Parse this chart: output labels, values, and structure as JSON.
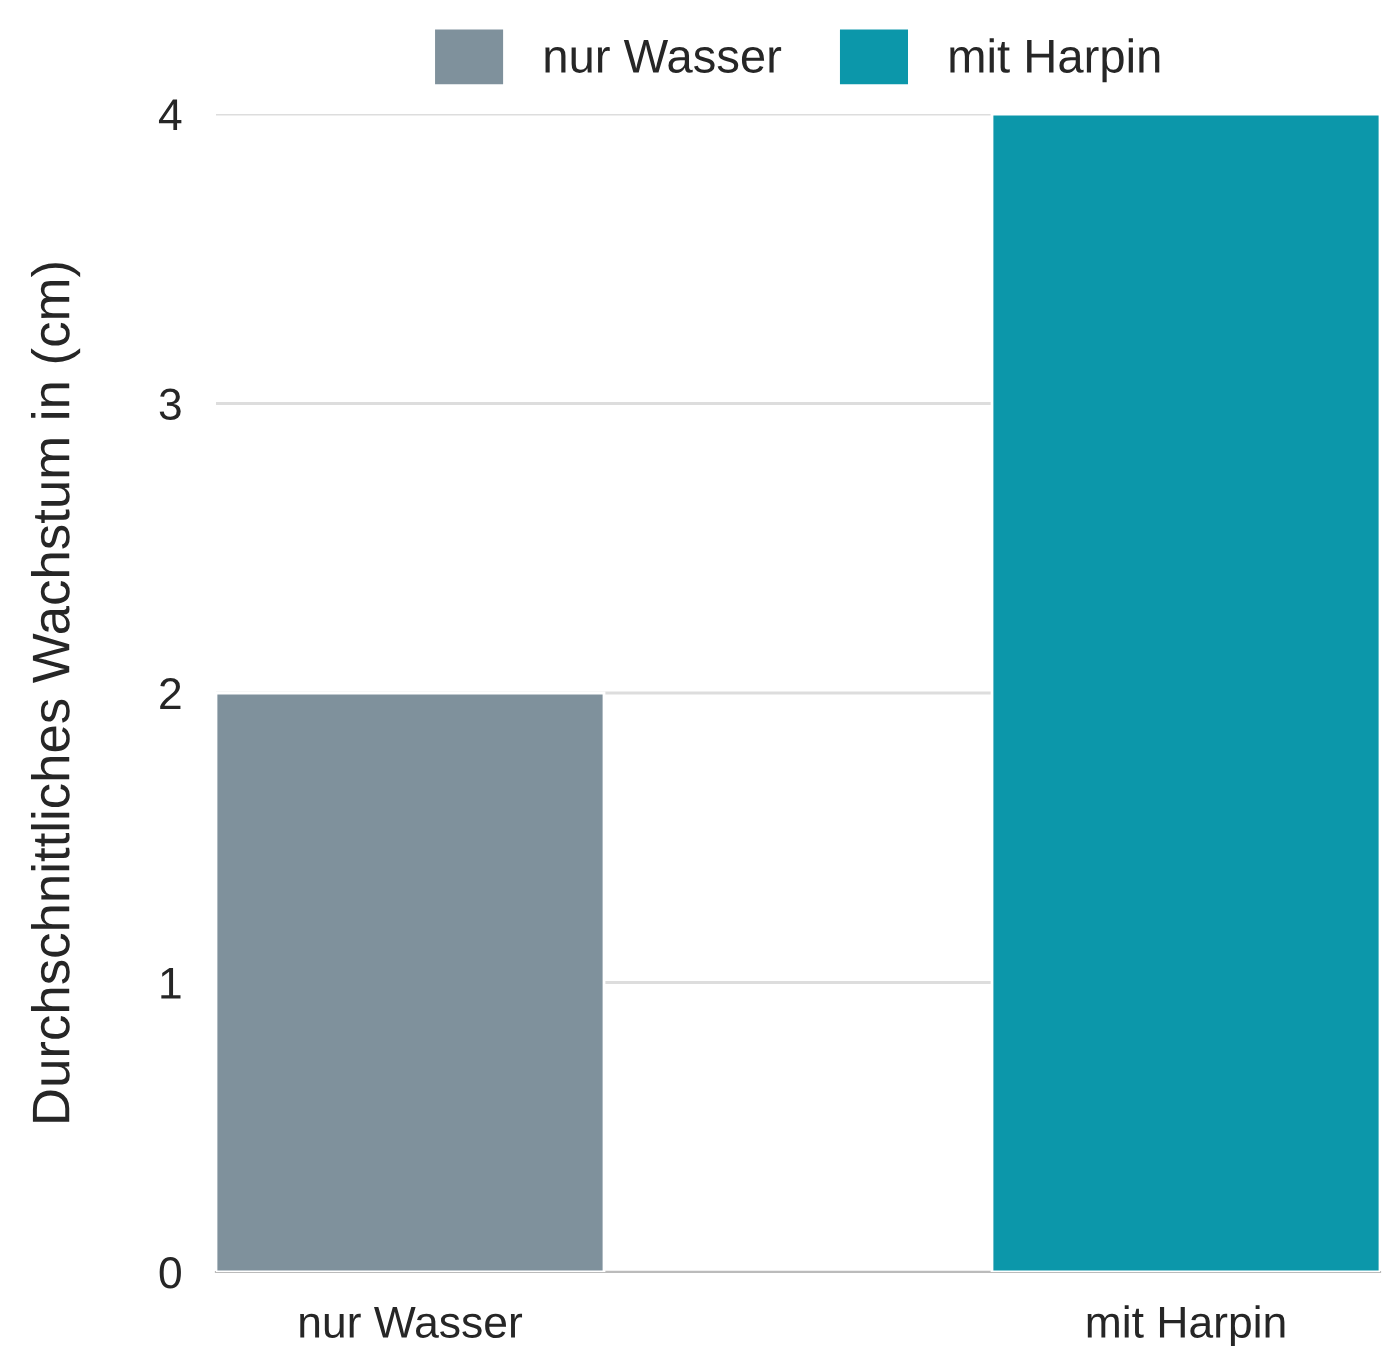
{
  "chart_data": {
    "type": "bar",
    "ylabel": "Durchschnittliches Wachstum in (cm)",
    "categories": [
      "nur Wasser",
      "mit Harpin"
    ],
    "series": [
      {
        "name": "nur Wasser",
        "color": "#7f919c",
        "values": [
          2,
          null
        ]
      },
      {
        "name": "mit Harpin",
        "color": "#0c97aa",
        "values": [
          null,
          4
        ]
      }
    ],
    "ylim": [
      0,
      4
    ],
    "yticks": [
      0,
      1,
      2,
      3,
      4
    ],
    "grid": "y",
    "legend": "top"
  }
}
